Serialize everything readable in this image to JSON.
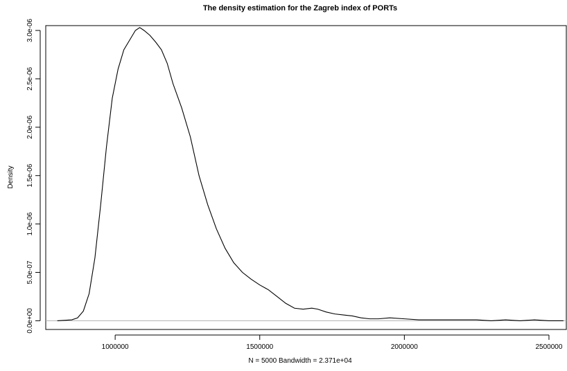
{
  "chart_data": {
    "type": "line",
    "title": "The density estimation for the Zagreb index of PORTs",
    "xlabel": "N = 5000   Bandwidth = 2.371e+04",
    "ylabel": "Density",
    "xlim": [
      760000,
      2560000
    ],
    "ylim": [
      -9e-08,
      3.05e-06
    ],
    "x_ticks": [
      1000000,
      1500000,
      2000000,
      2500000
    ],
    "x_tick_labels": [
      "1000000",
      "1500000",
      "2000000",
      "2500000"
    ],
    "y_ticks": [
      0,
      5e-07,
      1e-06,
      1.5e-06,
      2e-06,
      2.5e-06,
      3e-06
    ],
    "y_tick_labels": [
      "0.0e+00",
      "5.0e-07",
      "1.0e-06",
      "1.5e-06",
      "2.0e-06",
      "2.5e-06",
      "3.0e-06"
    ],
    "grid": false,
    "series": [
      {
        "x": [
          800000,
          850000,
          870000,
          890000,
          910000,
          930000,
          950000,
          970000,
          990000,
          1010000,
          1030000,
          1050000,
          1070000,
          1085000,
          1100000,
          1120000,
          1140000,
          1160000,
          1180000,
          1200000,
          1230000,
          1260000,
          1290000,
          1320000,
          1350000,
          1380000,
          1410000,
          1440000,
          1470000,
          1500000,
          1530000,
          1560000,
          1590000,
          1620000,
          1650000,
          1680000,
          1700000,
          1730000,
          1760000,
          1790000,
          1820000,
          1850000,
          1880000,
          1910000,
          1950000,
          2000000,
          2050000,
          2100000,
          2150000,
          2200000,
          2250000,
          2300000,
          2350000,
          2400000,
          2450000,
          2500000,
          2550000
        ],
        "y": [
          0.0,
          1e-08,
          3e-08,
          1e-07,
          2.8e-07,
          6.5e-07,
          1.2e-06,
          1.8e-06,
          2.3e-06,
          2.6e-06,
          2.8e-06,
          2.9e-06,
          3e-06,
          3.03e-06,
          3e-06,
          2.95e-06,
          2.88e-06,
          2.8e-06,
          2.66e-06,
          2.45e-06,
          2.2e-06,
          1.9e-06,
          1.5e-06,
          1.2e-06,
          9.5e-07,
          7.5e-07,
          6e-07,
          5e-07,
          4.3e-07,
          3.7e-07,
          3.2e-07,
          2.5e-07,
          1.8e-07,
          1.3e-07,
          1.2e-07,
          1.3e-07,
          1.2e-07,
          9e-08,
          7e-08,
          6e-08,
          5e-08,
          3e-08,
          2e-08,
          2e-08,
          3e-08,
          2e-08,
          1e-08,
          1e-08,
          1e-08,
          1e-08,
          1e-08,
          0.0,
          1e-08,
          0.0,
          1e-08,
          0.0,
          0.0
        ]
      }
    ]
  }
}
